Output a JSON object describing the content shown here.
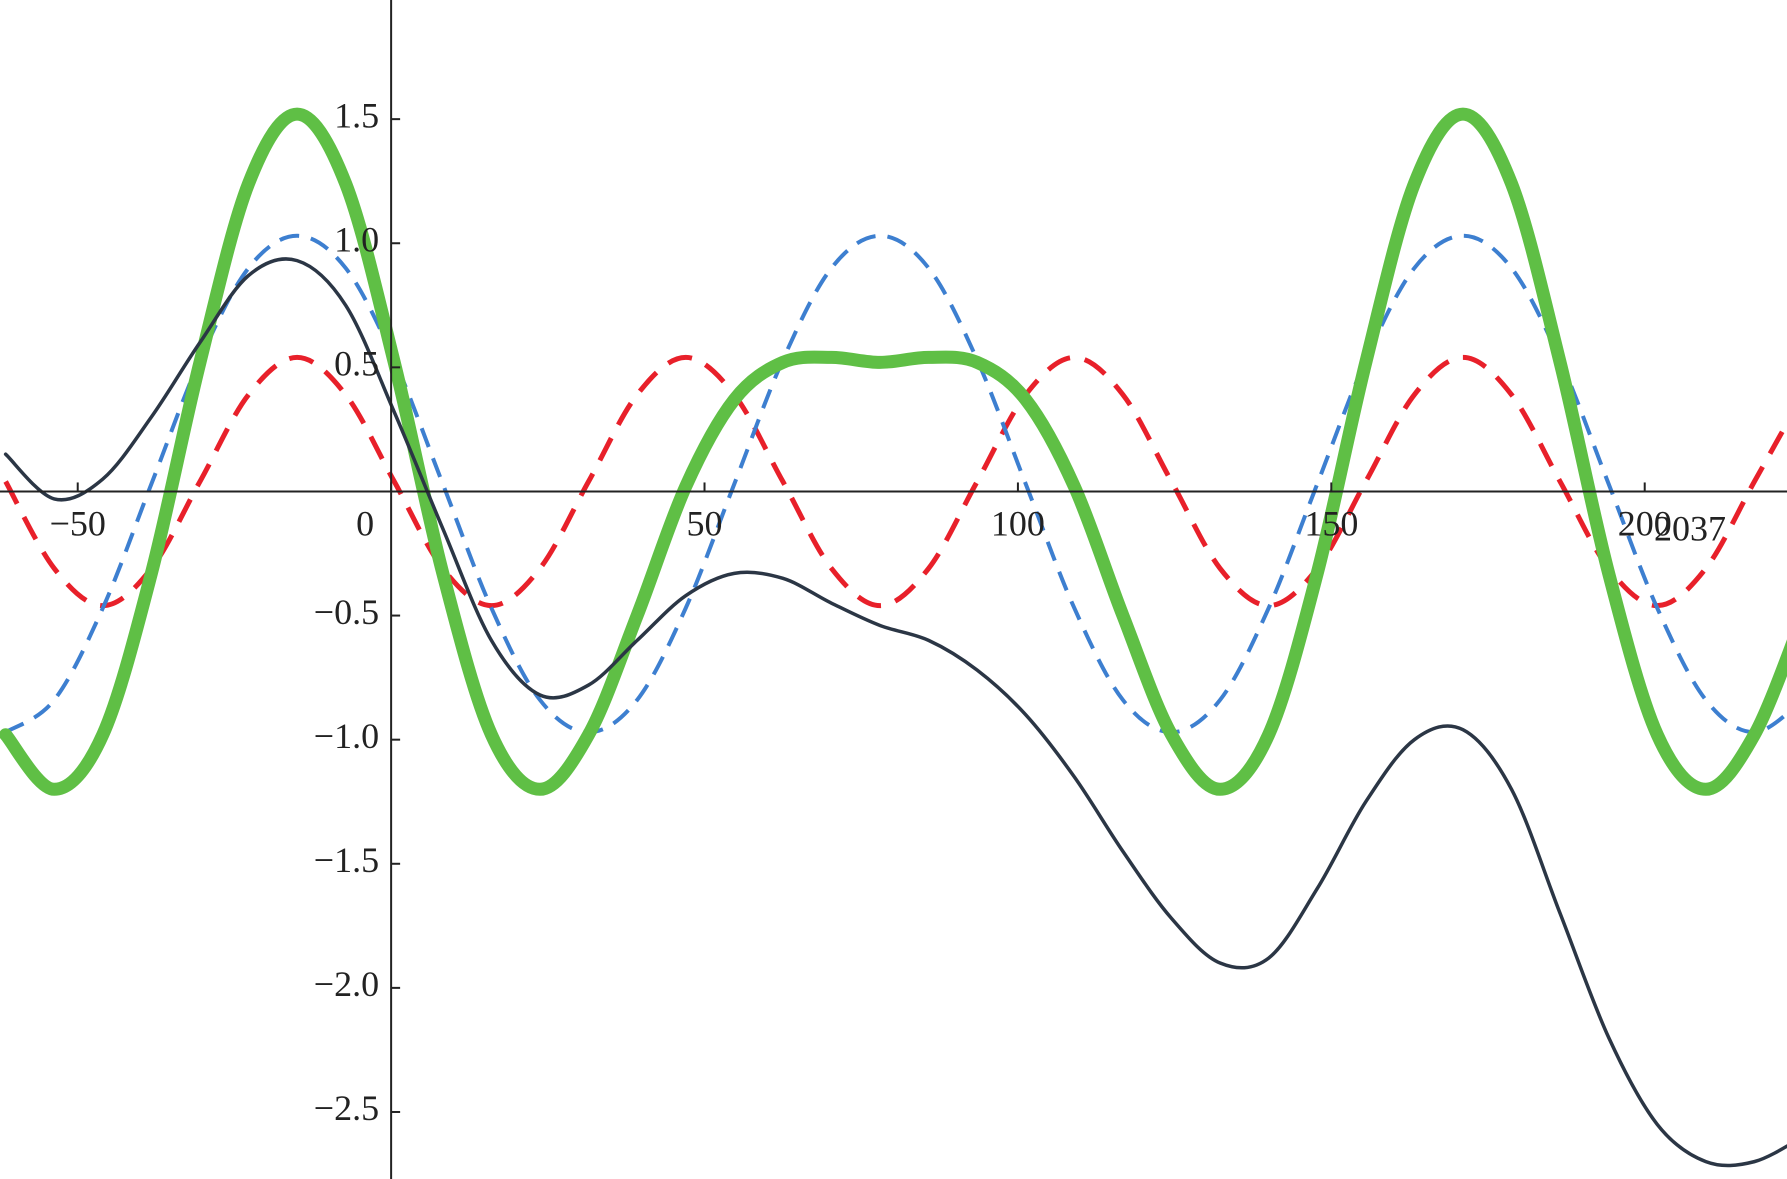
{
  "chart_data": {
    "type": "line",
    "xlabel": "2037",
    "x": [
      -61.5,
      -53.75,
      -46,
      -38.25,
      -30.5,
      -22.75,
      -15,
      -7.25,
      0.5,
      8.25,
      16,
      23.75,
      31.5,
      39.25,
      47,
      54.75,
      62.5,
      70.25,
      78,
      85.75,
      93.5,
      101.25,
      109,
      116.75,
      124.5,
      132.25,
      140,
      147.75,
      155.5,
      163.25,
      171,
      178.75,
      186.5,
      194.25,
      202,
      209.75,
      217.5,
      225.25
    ],
    "series": [
      {
        "color": "#e8202a",
        "dash": true,
        "width": 5,
        "values": [
          0.04,
          -0.31,
          -0.46,
          -0.31,
          0.04,
          0.39,
          0.54,
          0.39,
          0.04,
          -0.31,
          -0.46,
          -0.31,
          0.04,
          0.39,
          0.54,
          0.39,
          0.04,
          -0.31,
          -0.46,
          -0.31,
          0.04,
          0.39,
          0.54,
          0.39,
          0.04,
          -0.31,
          -0.46,
          -0.31,
          0.04,
          0.39,
          0.54,
          0.39,
          0.04,
          -0.31,
          -0.46,
          -0.31,
          0.04,
          0.39
        ]
      },
      {
        "color": "#3d7fd0",
        "dash": true,
        "width": 4,
        "values": [
          -0.97,
          -0.84,
          -0.47,
          0.03,
          0.53,
          0.9,
          1.03,
          0.9,
          0.53,
          0.03,
          -0.47,
          -0.84,
          -0.97,
          -0.84,
          -0.47,
          0.03,
          0.53,
          0.9,
          1.03,
          0.9,
          0.53,
          0.03,
          -0.47,
          -0.84,
          -0.97,
          -0.84,
          -0.47,
          0.03,
          0.53,
          0.9,
          1.03,
          0.9,
          0.53,
          0.03,
          -0.47,
          -0.84,
          -0.97,
          -0.84
        ]
      },
      {
        "color": "#5fbf45",
        "dash": false,
        "width": 13,
        "values": [
          -0.98,
          -1.2,
          -0.98,
          -0.33,
          0.52,
          1.24,
          1.52,
          1.24,
          0.52,
          -0.33,
          -0.98,
          -1.2,
          -0.98,
          -0.5,
          0.02,
          0.37,
          0.52,
          0.54,
          0.52,
          0.54,
          0.52,
          0.37,
          0.02,
          -0.5,
          -0.98,
          -1.2,
          -0.98,
          -0.33,
          0.52,
          1.24,
          1.52,
          1.24,
          0.52,
          -0.33,
          -0.98,
          -1.2,
          -0.98,
          -0.5
        ]
      },
      {
        "color": "#2b3645",
        "dash": false,
        "width": 3.5,
        "values": [
          0.15,
          -0.03,
          0.05,
          0.3,
          0.6,
          0.87,
          0.93,
          0.75,
          0.32,
          -0.15,
          -0.6,
          -0.82,
          -0.78,
          -0.6,
          -0.42,
          -0.33,
          -0.35,
          -0.45,
          -0.54,
          -0.6,
          -0.72,
          -0.9,
          -1.15,
          -1.45,
          -1.72,
          -1.9,
          -1.88,
          -1.6,
          -1.25,
          -1.0,
          -0.96,
          -1.2,
          -1.7,
          -2.2,
          -2.55,
          -2.7,
          -2.7,
          -2.6
        ]
      }
    ],
    "xlim": [
      -62.4,
      222.7
    ],
    "ylim": [
      -2.77,
      1.98
    ],
    "xticks": [
      {
        "value": -50,
        "label": "−50"
      },
      0,
      50,
      100,
      150,
      200
    ],
    "yticks": [
      {
        "value": -2.5,
        "label": "−2.5"
      },
      {
        "value": -2,
        "label": "−2.0"
      },
      {
        "value": -1.5,
        "label": "−1.5"
      },
      {
        "value": -1,
        "label": "−1.0"
      },
      {
        "value": -0.5,
        "label": "−0.5"
      },
      0.5,
      {
        "value": 1,
        "label": "1.0"
      },
      1.5
    ]
  }
}
